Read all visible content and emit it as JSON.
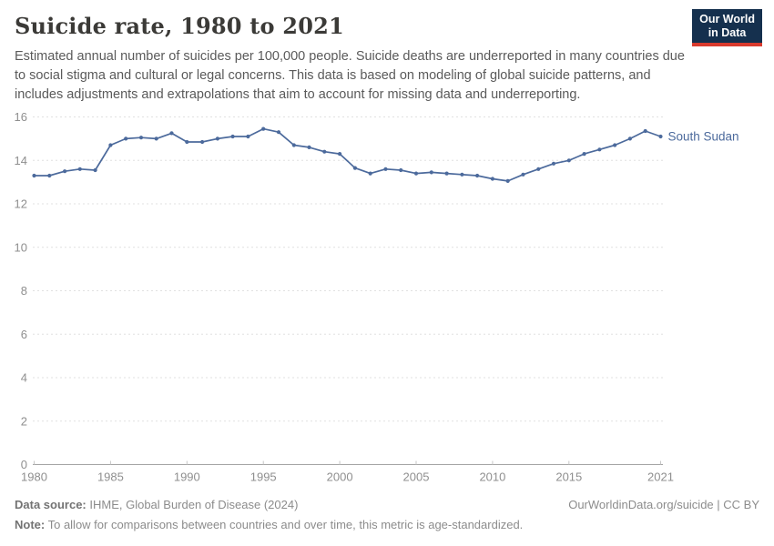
{
  "header": {
    "title": "Suicide rate, 1980 to 2021",
    "subtitle": "Estimated annual number of suicides per 100,000 people. Suicide deaths are underreported in many countries due to social stigma and cultural or legal concerns. This data is based on modeling of global suicide patterns, and includes adjustments and extrapolations that aim to account for missing data and underreporting.",
    "logo": {
      "line1": "Our World",
      "line2": "in Data",
      "bg_color": "#15304e",
      "bar_color": "#d93a2d"
    }
  },
  "chart_data": {
    "type": "line",
    "title": "Suicide rate, 1980 to 2021",
    "xlabel": "",
    "ylabel": "",
    "xlim": [
      1980,
      2021
    ],
    "ylim": [
      0,
      16
    ],
    "x_ticks": [
      1980,
      1985,
      1990,
      1995,
      2000,
      2005,
      2010,
      2015,
      2021
    ],
    "y_ticks": [
      0,
      2,
      4,
      6,
      8,
      10,
      12,
      14,
      16
    ],
    "grid": "horizontal-dashed",
    "legend_position": "end-of-line-label",
    "line_color": "#4c6a9c",
    "grid_color": "#e0e0e0",
    "axis_color": "#a5a5a5",
    "tick_label_color": "#8f8f8f",
    "series": [
      {
        "name": "South Sudan",
        "color": "#4c6a9c",
        "x": [
          1980,
          1981,
          1982,
          1983,
          1984,
          1985,
          1986,
          1987,
          1988,
          1989,
          1990,
          1991,
          1992,
          1993,
          1994,
          1995,
          1996,
          1997,
          1998,
          1999,
          2000,
          2001,
          2002,
          2003,
          2004,
          2005,
          2006,
          2007,
          2008,
          2009,
          2010,
          2011,
          2012,
          2013,
          2014,
          2015,
          2016,
          2017,
          2018,
          2019,
          2020,
          2021
        ],
        "values": [
          13.3,
          13.3,
          13.5,
          13.6,
          13.55,
          14.7,
          15.0,
          15.05,
          15.0,
          15.25,
          14.85,
          14.85,
          15.0,
          15.1,
          15.1,
          15.45,
          15.3,
          14.7,
          14.6,
          14.4,
          14.3,
          13.65,
          13.4,
          13.6,
          13.55,
          13.4,
          13.45,
          13.4,
          13.35,
          13.3,
          13.15,
          13.05,
          13.35,
          13.6,
          13.85,
          14.0,
          14.3,
          14.5,
          14.7,
          15.0,
          15.35,
          15.1
        ]
      }
    ]
  },
  "footer": {
    "source_label": "Data source:",
    "source_text": " IHME, Global Burden of Disease (2024)",
    "credit": "OurWorldinData.org/suicide | CC BY",
    "note_label": "Note:",
    "note_text": " To allow for comparisons between countries and over time, this metric is age-standardized."
  }
}
